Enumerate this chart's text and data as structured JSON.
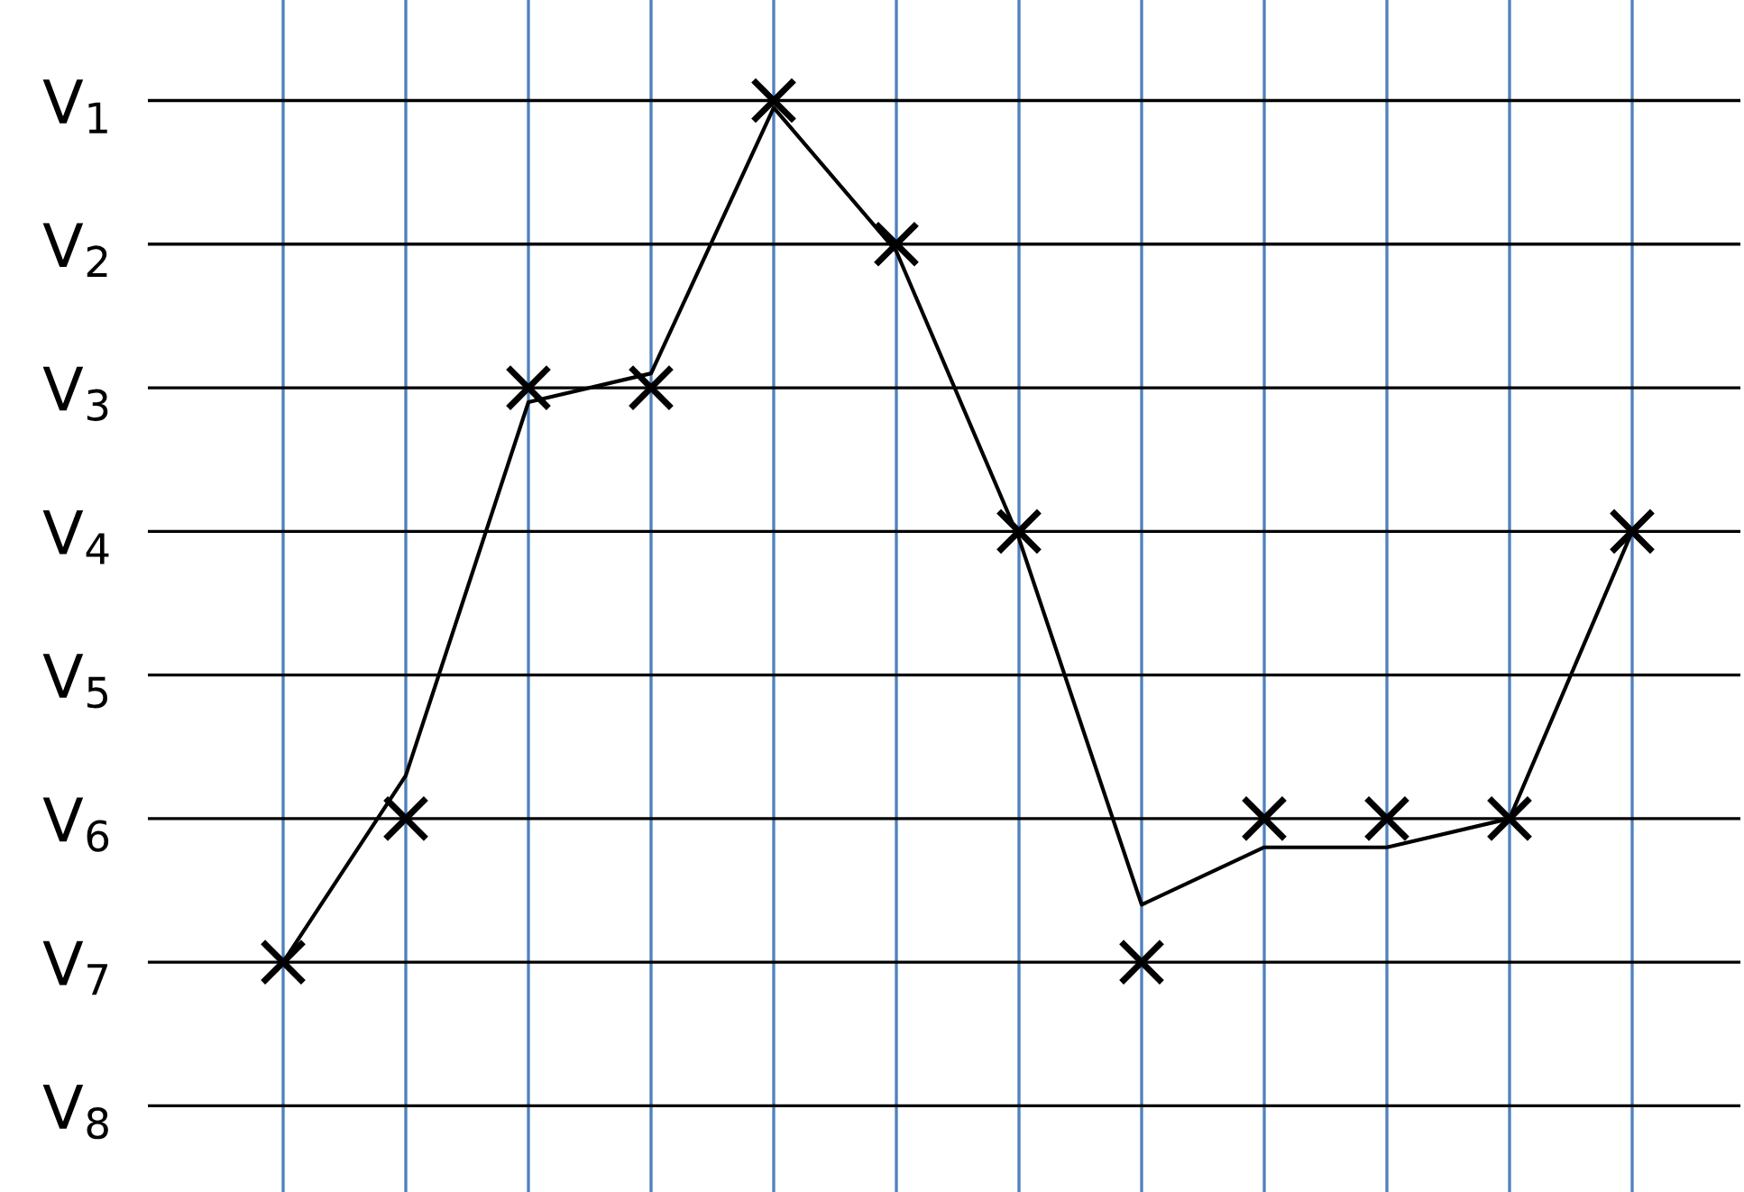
{
  "chart_data": {
    "type": "line",
    "categories": [
      null,
      null,
      null,
      null,
      null,
      null,
      null,
      null,
      null,
      null,
      null,
      null
    ],
    "ylim": [
      8.6,
      0.3
    ],
    "yticks": [
      {
        "value": 1,
        "label": "V$_{1}$"
      },
      {
        "value": 2,
        "label": "V$_{2}$"
      },
      {
        "value": 3,
        "label": "V$_{3}$"
      },
      {
        "value": 4,
        "label": "V$_{4}$"
      },
      {
        "value": 5,
        "label": "V$_{5}$"
      },
      {
        "value": 6,
        "label": "V$_{6}$"
      },
      {
        "value": 7,
        "label": "V$_{7}$"
      },
      {
        "value": 8,
        "label": "V$_{8}$"
      }
    ],
    "tick_labels": "y",
    "grid": true,
    "series": [
      {
        "color": "#000000",
        "values": [
          7.0,
          5.7,
          3.1,
          2.9,
          1.05,
          2.05,
          4.05,
          6.6,
          6.2,
          6.2,
          6.0,
          4.0
        ]
      },
      {
        "type": "scatter",
        "color": "#000000",
        "marker": "cross",
        "values": [
          7,
          6,
          3,
          3,
          1,
          2,
          4,
          7,
          6,
          6,
          6,
          4
        ]
      }
    ]
  }
}
